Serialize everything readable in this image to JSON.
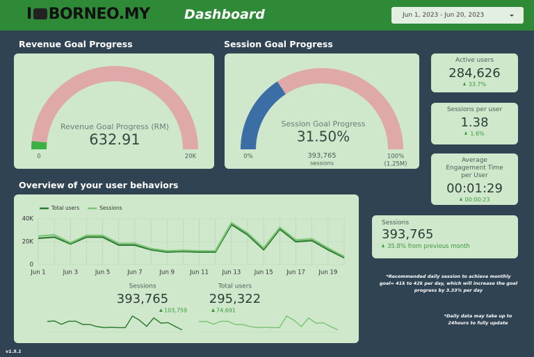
{
  "header": {
    "logo_prefix": "I",
    "logo": "BORNEO.MY",
    "title": "Dashboard",
    "date_range": "Jun 1, 2023 - Jun 20, 2023"
  },
  "sections": {
    "revenue": "Revenue Goal Progress",
    "session": "Session Goal Progress",
    "overview": "Overview of your user behaviors"
  },
  "chart_data": [
    {
      "type": "gauge",
      "title": "Revenue Goal Progress (RM)",
      "value": 632.91,
      "xlim": [
        0,
        20000
      ],
      "xticks": [
        0,
        {
          "value": 20000,
          "label": "20K"
        }
      ],
      "color": "#3cb043",
      "track_color": "#dfa9a9"
    },
    {
      "type": "gauge",
      "title": "Session Goal Progress",
      "value": 31.5,
      "value_label": "31.50%",
      "xlim": [
        0,
        100
      ],
      "xticks": [
        {
          "value": 0,
          "label": "0%"
        },
        {
          "value": 100,
          "label": "100%"
        }
      ],
      "max_note": "(1.25M)",
      "detail": "393,765",
      "detail_unit": "sessions",
      "color": "#3a6ea5",
      "track_color": "#dfa9a9"
    },
    {
      "type": "line",
      "categories": [
        "Jun 1",
        null,
        "Jun 3",
        null,
        "Jun 5",
        null,
        "Jun 7",
        null,
        "Jun 9",
        null,
        "Jun 11",
        null,
        "Jun 13",
        null,
        "Jun 15",
        null,
        "Jun 17",
        null,
        "Jun 19",
        null
      ],
      "series": [
        {
          "name": "Total users",
          "color": "#2e7d32",
          "values": [
            23000,
            24000,
            18000,
            24000,
            24000,
            17000,
            17000,
            13000,
            11000,
            11500,
            11000,
            11000,
            35000,
            26000,
            13000,
            31000,
            20000,
            21000,
            13000,
            6000
          ]
        },
        {
          "name": "Sessions",
          "color": "#7cc576",
          "values": [
            25000,
            26000,
            19000,
            25500,
            25500,
            18500,
            18500,
            14000,
            12000,
            12500,
            12000,
            12000,
            36500,
            27500,
            14500,
            32500,
            21500,
            22500,
            14500,
            7000
          ]
        }
      ],
      "ylim": [
        0,
        40000
      ],
      "yticks": [
        0,
        {
          "value": 20000,
          "label": "20K"
        },
        {
          "value": 40000,
          "label": "40K"
        }
      ],
      "grid": true,
      "legend": "top-left"
    },
    {
      "type": "sparkline",
      "title": "Sessions",
      "total": "393,765",
      "change": "103,759",
      "color": "#2e7d32",
      "values": [
        25000,
        26000,
        19000,
        25500,
        25500,
        18500,
        18500,
        14000,
        12000,
        12500,
        12000,
        12000,
        36500,
        27500,
        14500,
        32500,
        21500,
        22500,
        14500,
        7000
      ]
    },
    {
      "type": "sparkline",
      "title": "Total users",
      "total": "295,322",
      "change": "74,691",
      "color": "#7cc576",
      "values": [
        23000,
        24000,
        18000,
        24000,
        24000,
        17000,
        17000,
        13000,
        11000,
        11500,
        11000,
        11000,
        35000,
        26000,
        13000,
        31000,
        20000,
        21000,
        13000,
        6000
      ]
    }
  ],
  "scorecards": [
    {
      "label": "Active users",
      "value": "284,626",
      "change": "33.7%"
    },
    {
      "label": "Sessions per user",
      "value": "1.38",
      "change": "1.6%"
    },
    {
      "label": "Average Engagement Time per User",
      "value": "00:01:29",
      "change": "00:00:23"
    },
    {
      "label": "Sessions",
      "value": "393,765",
      "change": "35.8% from previous month"
    }
  ],
  "notes": [
    "*Recommended daily session to achieve monthly goal= 41k to 42k per day, which will increase the goal progress by 3.33% per day",
    "*Daily data may take up to 24hours to fully update"
  ],
  "version": "v1.5.1"
}
